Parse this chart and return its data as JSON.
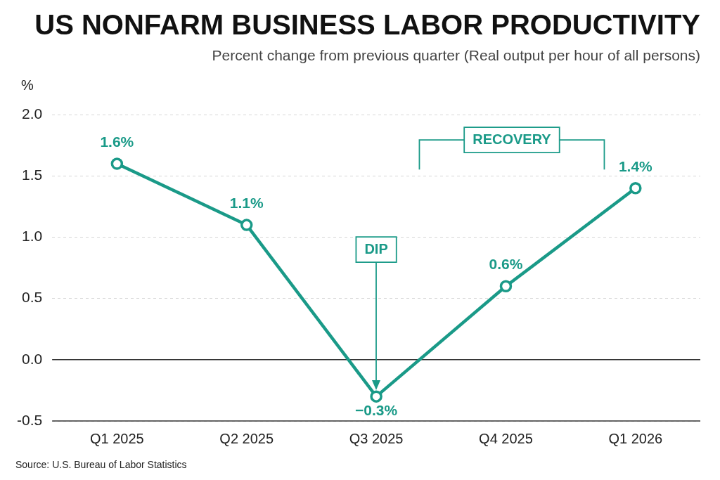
{
  "chart_data": {
    "type": "line",
    "title": "US NONFARM BUSINESS LABOR PRODUCTIVITY",
    "subtitle": "Percent change from previous quarter (Real output per hour of all persons)",
    "ylabel": "%",
    "categories": [
      "Q1 2025",
      "Q2 2025",
      "Q3 2025",
      "Q4 2025",
      "Q1 2026"
    ],
    "series": [
      {
        "color": "#1a9a88",
        "values": [
          1.6,
          1.1,
          -0.3,
          0.6,
          1.4
        ],
        "value_labels": [
          "1.6%",
          "1.1%",
          "−0.3%",
          "0.6%",
          "1.4%"
        ]
      }
    ],
    "ylim": [
      -0.5,
      2.0
    ],
    "yticks": [
      {
        "value": -0.5,
        "label": "-0.5"
      },
      {
        "value": 0,
        "label": "0.0"
      },
      0.5,
      {
        "value": 1,
        "label": "1.0"
      },
      1.5,
      {
        "value": 2,
        "label": "2.0"
      }
    ],
    "grid": "y",
    "legend": false,
    "marker": "circle",
    "line_style": "solid",
    "ref_lines": [
      {
        "axis": "y",
        "value": 0,
        "color": "#333333",
        "line_style": "solid"
      }
    ],
    "annotations": [
      "DIP",
      "RECOVERY",
      "Source: U.S. Bureau of Labor Statistics"
    ]
  }
}
